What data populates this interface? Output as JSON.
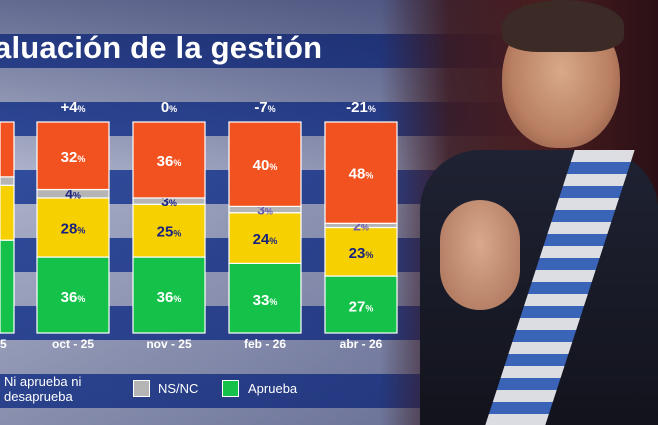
{
  "title": "aluación de la gestión",
  "chart_data": {
    "type": "bar",
    "stacked": true,
    "categories": [
      "oct - 25",
      "nov - 25",
      "feb - 26",
      "abr - 26"
    ],
    "changes": [
      "+4",
      "0",
      "-7",
      "-21"
    ],
    "series": [
      {
        "name": "Aprueba",
        "color": "#14c24a",
        "values": [
          36,
          36,
          33,
          27
        ]
      },
      {
        "name": "Ni aprueba ni desaprueba",
        "color": "#f6d000",
        "values": [
          28,
          25,
          24,
          23
        ]
      },
      {
        "name": "NS/NC",
        "color": "#b5b5b5",
        "values": [
          4,
          3,
          3,
          2
        ]
      },
      {
        "name": "",
        "color": "#f2521f",
        "values": [
          32,
          36,
          40,
          48
        ]
      }
    ],
    "partial_left_label": "5",
    "ylim": [
      0,
      100
    ],
    "grid": false,
    "legend_position": "bottom"
  },
  "legend": {
    "ni": "Ni aprueba ni desaprueba",
    "nsnc": "NS/NC",
    "aprueba": "Aprueba"
  }
}
